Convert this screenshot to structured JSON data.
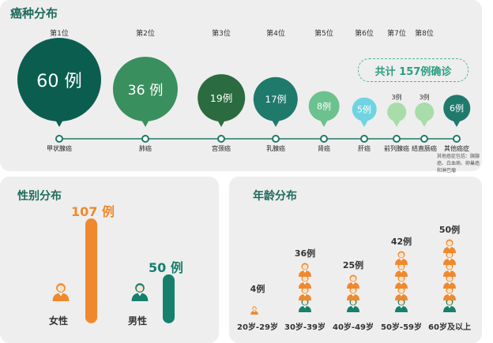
{
  "cancer_panel": {
    "title": "癌种分布",
    "total_label": "共计 157例确诊",
    "other_note": "其他癌症包括：胰腺癌、白血病、卵巢癌和淋巴瘤",
    "colors": {
      "dark_green": "#0b5e4f",
      "mid_green": "#3a8f5e",
      "forest": "#2a6b3f",
      "teal": "#1f7a6c",
      "light_green": "#6cc28e",
      "light_cyan": "#6fd4e0",
      "pale_green": "#a8dca9",
      "line": "#1e7a64"
    }
  },
  "gender_panel": {
    "title": "性别分布",
    "female_color": "#f0892d",
    "male_color": "#16806d"
  },
  "age_panel": {
    "title": "年龄分布",
    "orange": "#f0892d",
    "teal": "#16806d"
  },
  "chart_data": [
    {
      "type": "bubble",
      "title": "癌种分布",
      "categories": [
        "甲状腺癌",
        "肺癌",
        "宫颈癌",
        "乳腺癌",
        "肾癌",
        "肝癌",
        "前列腺癌",
        "结直肠癌",
        "其他癌症"
      ],
      "ranks": [
        "第1位",
        "第2位",
        "第3位",
        "第4位",
        "第5位",
        "第6位",
        "第7位",
        "第8位",
        ""
      ],
      "values": [
        60,
        36,
        19,
        17,
        8,
        5,
        3,
        3,
        6
      ],
      "value_labels": [
        "60 例",
        "36 例",
        "19例",
        "17例",
        "8例",
        "5例",
        "3例",
        "3例",
        "6例"
      ],
      "total": 157
    },
    {
      "type": "bar",
      "title": "性别分布",
      "categories": [
        "女性",
        "男性"
      ],
      "values": [
        107,
        50
      ],
      "value_labels": [
        "107 例",
        "50 例"
      ]
    },
    {
      "type": "bar",
      "title": "年龄分布",
      "categories": [
        "20岁-29岁",
        "30岁-39岁",
        "40岁-49岁",
        "50岁-59岁",
        "60岁及以上"
      ],
      "values": [
        4,
        36,
        25,
        42,
        50
      ],
      "value_labels": [
        "4例",
        "36例",
        "25例",
        "42例",
        "50例"
      ]
    }
  ]
}
